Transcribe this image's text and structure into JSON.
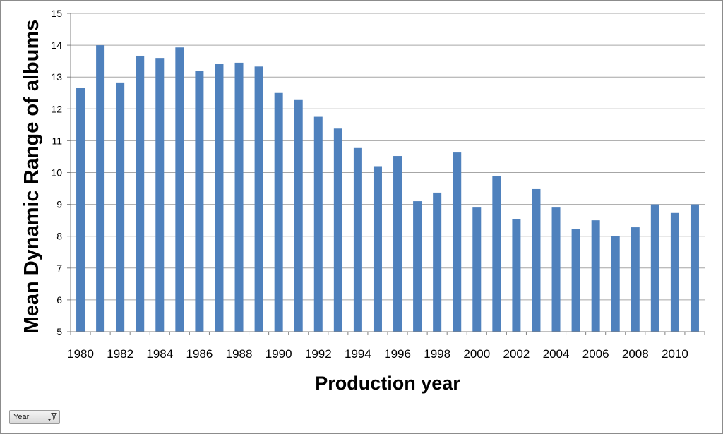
{
  "chart_data": {
    "type": "bar",
    "title": "",
    "xlabel": "Production year",
    "ylabel": "Mean Dynamic Range of albums",
    "ylim": [
      5,
      15
    ],
    "yticks": [
      5,
      6,
      7,
      8,
      9,
      10,
      11,
      12,
      13,
      14,
      15
    ],
    "grid": true,
    "legend": "none",
    "bar_color": "#4f81bd",
    "categories": [
      "1980",
      "1981",
      "1982",
      "1983",
      "1984",
      "1985",
      "1986",
      "1987",
      "1988",
      "1989",
      "1990",
      "1991",
      "1992",
      "1993",
      "1994",
      "1995",
      "1996",
      "1997",
      "1998",
      "1999",
      "2000",
      "2001",
      "2002",
      "2003",
      "2004",
      "2005",
      "2006",
      "2007",
      "2008",
      "2009",
      "2010",
      "2011"
    ],
    "values": [
      12.67,
      14.0,
      12.83,
      13.67,
      13.6,
      13.93,
      13.2,
      13.42,
      13.45,
      13.33,
      12.5,
      12.3,
      11.75,
      11.38,
      10.77,
      10.2,
      10.52,
      9.1,
      9.37,
      10.63,
      8.9,
      9.88,
      8.53,
      9.48,
      8.9,
      8.23,
      8.5,
      8.0,
      8.28,
      9.0,
      8.73,
      9.0
    ],
    "x_tick_labels": [
      "1980",
      "1982",
      "1984",
      "1986",
      "1988",
      "1990",
      "1992",
      "1994",
      "1996",
      "1998",
      "2000",
      "2002",
      "2004",
      "2006",
      "2008",
      "2010"
    ]
  },
  "filter_button": {
    "label": "Year",
    "icon": "filter-dropdown-icon"
  }
}
